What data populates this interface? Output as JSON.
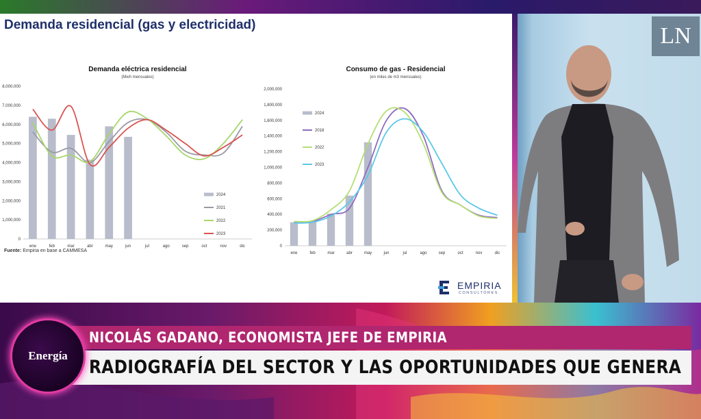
{
  "slide": {
    "title": "Demanda residencial (gas y electricidad)",
    "source_label": "Fuente:",
    "source_text": "Empiria en base a CAMMESA",
    "logo_name": "EMPIRIA",
    "logo_sub": "CONSULTORES"
  },
  "overlay": {
    "channel_logo": "LN",
    "badge": "Energía",
    "name_line": "NICOLÁS GADANO, ECONOMISTA JEFE DE EMPIRIA",
    "headline": "RADIOGRAFÍA DEL SECTOR Y LAS OPORTUNIDADES QUE GENERA"
  },
  "chart_data": [
    {
      "type": "bar",
      "title": "Demanda eléctrica residencial",
      "subtitle": "(Mwh mensuales)",
      "categories": [
        "ene",
        "feb",
        "mar",
        "abr",
        "may",
        "jun",
        "jul",
        "ago",
        "sep",
        "oct",
        "nov",
        "dic"
      ],
      "ylim": [
        0,
        8000000
      ],
      "yticks": [
        0,
        1000000,
        2000000,
        3000000,
        4000000,
        5000000,
        6000000,
        7000000,
        8000000
      ],
      "ytick_labels": [
        "0",
        "1,000,000",
        "2,000,000",
        "3,000,000",
        "4,000,000",
        "5,000,000",
        "6,000,000",
        "7,000,000",
        "8,000,000"
      ],
      "legend_position": "lower-right",
      "series": [
        {
          "name": "2024",
          "kind": "bar",
          "color": "#b8bccb",
          "values": [
            6400000,
            6300000,
            5450000,
            4150000,
            5900000,
            5350000,
            null,
            null,
            null,
            null,
            null,
            null
          ]
        },
        {
          "name": "2021",
          "kind": "line",
          "color": "#9a9aa6",
          "values": [
            5600000,
            4550000,
            4750000,
            4000000,
            5100000,
            6100000,
            6250000,
            5600000,
            4600000,
            4400000,
            4500000,
            5900000
          ]
        },
        {
          "name": "2022",
          "kind": "line",
          "color": "#a6d66a",
          "values": [
            6100000,
            4350000,
            4400000,
            4050000,
            5500000,
            6650000,
            6300000,
            5400000,
            4400000,
            4200000,
            5000000,
            6250000
          ]
        },
        {
          "name": "2023",
          "kind": "line",
          "color": "#d9534f",
          "values": [
            6800000,
            5700000,
            6950000,
            3900000,
            4800000,
            5800000,
            6250000,
            5700000,
            5000000,
            4350000,
            4800000,
            5450000
          ]
        }
      ]
    },
    {
      "type": "bar",
      "title": "Consumo de gas - Residencial",
      "subtitle": "(en miles de m3 mensuales)",
      "categories": [
        "ene",
        "feb",
        "mar",
        "abr",
        "may",
        "jun",
        "jul",
        "ago",
        "sep",
        "oct",
        "nov",
        "dic"
      ],
      "ylim": [
        0,
        2000000
      ],
      "yticks": [
        0,
        200000,
        400000,
        600000,
        800000,
        1000000,
        1200000,
        1400000,
        1600000,
        1800000,
        2000000
      ],
      "ytick_labels": [
        "0",
        "200,000",
        "400,000",
        "600,000",
        "800,000",
        "1,000,000",
        "1,200,000",
        "1,400,000",
        "1,600,000",
        "1,800,000",
        "2,000,000"
      ],
      "legend_position": "top-left",
      "series": [
        {
          "name": "2024",
          "kind": "bar",
          "color": "#b8bccb",
          "values": [
            300000,
            310000,
            410000,
            640000,
            1320000,
            null,
            null,
            null,
            null,
            null,
            null,
            null
          ]
        },
        {
          "name": "2018",
          "kind": "line",
          "color": "#8e6cc0",
          "values": [
            300000,
            310000,
            400000,
            480000,
            1000000,
            1600000,
            1750000,
            1400000,
            700000,
            520000,
            390000,
            360000
          ]
        },
        {
          "name": "2022",
          "kind": "line",
          "color": "#b6de74",
          "values": [
            310000,
            320000,
            460000,
            700000,
            1300000,
            1720000,
            1700000,
            1300000,
            680000,
            520000,
            380000,
            350000
          ]
        },
        {
          "name": "2023",
          "kind": "line",
          "color": "#5cc8e8",
          "values": [
            290000,
            300000,
            380000,
            560000,
            900000,
            1450000,
            1620000,
            1450000,
            1050000,
            650000,
            480000,
            390000
          ]
        }
      ]
    }
  ]
}
